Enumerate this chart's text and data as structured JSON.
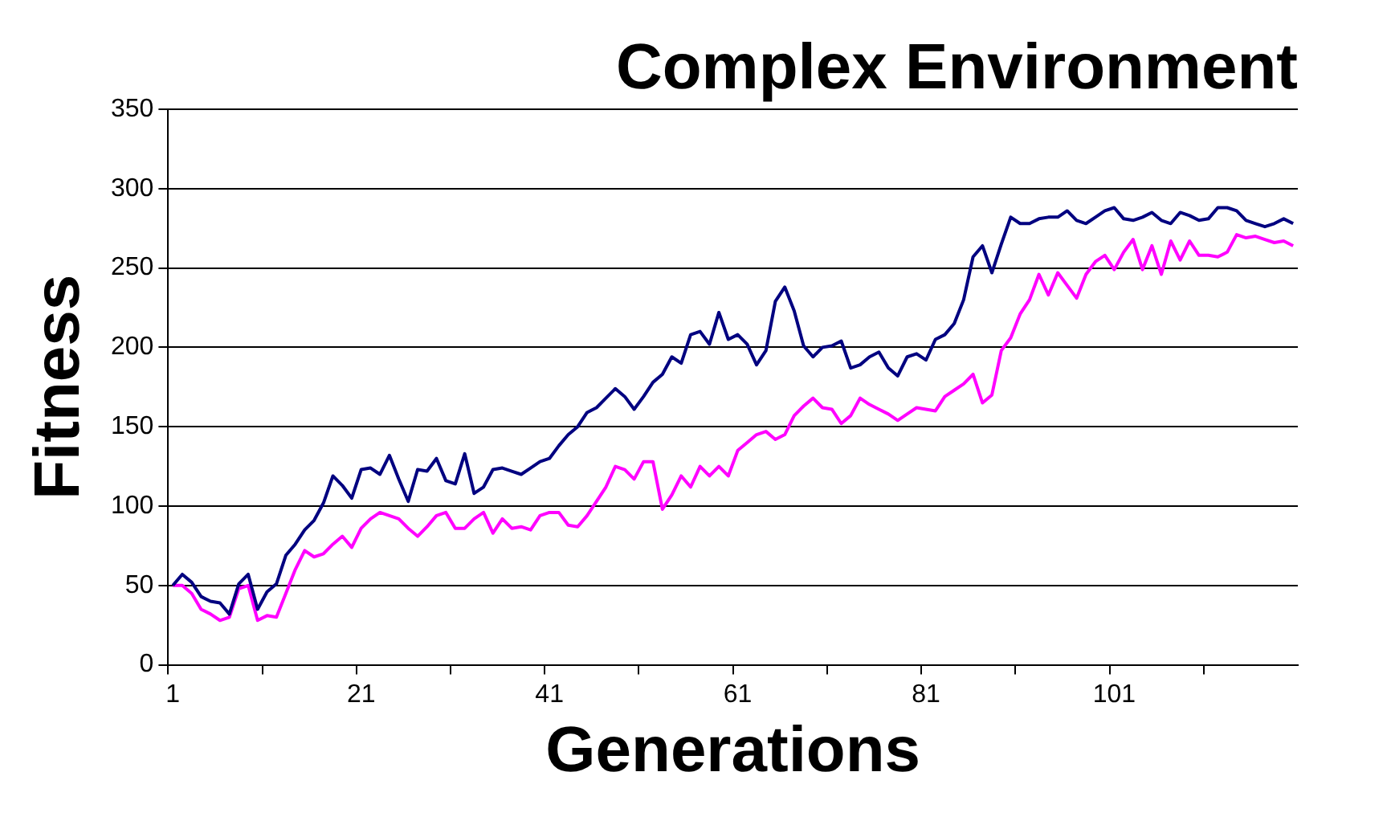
{
  "chart_data": {
    "type": "line",
    "title": "Complex Environment",
    "xlabel": "Generations",
    "ylabel": "Fitness",
    "categories": [
      "1",
      null,
      null,
      null,
      null,
      null,
      null,
      null,
      null,
      null,
      null,
      null,
      null,
      null,
      null,
      null,
      null,
      null,
      null,
      null,
      "21",
      null,
      null,
      null,
      null,
      null,
      null,
      null,
      null,
      null,
      null,
      null,
      null,
      null,
      null,
      null,
      null,
      null,
      null,
      null,
      "41",
      null,
      null,
      null,
      null,
      null,
      null,
      null,
      null,
      null,
      null,
      null,
      null,
      null,
      null,
      null,
      null,
      null,
      null,
      null,
      "61",
      null,
      null,
      null,
      null,
      null,
      null,
      null,
      null,
      null,
      null,
      null,
      null,
      null,
      null,
      null,
      null,
      null,
      null,
      null,
      "81",
      null,
      null,
      null,
      null,
      null,
      null,
      null,
      null,
      null,
      null,
      null,
      null,
      null,
      null,
      null,
      null,
      null,
      null,
      null,
      "101",
      null,
      null,
      null,
      null,
      null,
      null,
      null,
      null,
      null,
      null,
      null,
      null,
      null,
      null,
      null,
      null,
      null,
      null,
      null
    ],
    "series": [
      {
        "color": "#000080",
        "values": [
          50,
          57,
          52,
          43,
          40,
          39,
          32,
          51,
          57,
          35,
          46,
          51,
          69,
          76,
          85,
          91,
          102,
          119,
          113,
          105,
          123,
          124,
          120,
          132,
          117,
          103,
          123,
          122,
          130,
          116,
          114,
          133,
          108,
          112,
          123,
          124,
          122,
          120,
          124,
          128,
          130,
          138,
          145,
          150,
          159,
          162,
          168,
          174,
          169,
          161,
          169,
          178,
          183,
          194,
          190,
          208,
          210,
          202,
          222,
          205,
          208,
          202,
          189,
          198,
          229,
          238,
          223,
          201,
          194,
          200,
          201,
          204,
          187,
          189,
          194,
          197,
          187,
          182,
          194,
          196,
          192,
          205,
          208,
          215,
          230,
          257,
          264,
          247,
          265,
          282,
          278,
          278,
          281,
          282,
          282,
          286,
          280,
          278,
          282,
          286,
          288,
          281,
          280,
          282,
          285,
          280,
          278,
          285,
          283,
          280,
          281,
          288,
          288,
          286,
          280,
          278,
          276,
          278,
          281,
          278
        ]
      },
      {
        "color": "#ff00ff",
        "values": [
          50,
          50,
          45,
          35,
          32,
          28,
          30,
          48,
          50,
          28,
          31,
          30,
          45,
          60,
          72,
          68,
          70,
          76,
          81,
          74,
          86,
          92,
          96,
          94,
          92,
          86,
          81,
          87,
          94,
          96,
          86,
          86,
          92,
          96,
          83,
          92,
          86,
          87,
          85,
          94,
          96,
          96,
          88,
          87,
          94,
          103,
          112,
          125,
          123,
          117,
          128,
          128,
          98,
          107,
          119,
          112,
          125,
          119,
          125,
          119,
          135,
          140,
          145,
          147,
          142,
          145,
          157,
          163,
          168,
          162,
          161,
          152,
          157,
          168,
          164,
          161,
          158,
          154,
          158,
          162,
          161,
          160,
          169,
          173,
          177,
          183,
          165,
          170,
          198,
          206,
          221,
          230,
          246,
          233,
          247,
          239,
          231,
          246,
          254,
          258,
          249,
          260,
          268,
          249,
          264,
          246,
          267,
          255,
          267,
          258,
          258,
          257,
          260,
          271,
          269,
          270,
          268,
          266,
          267,
          264
        ]
      }
    ],
    "ylim": [
      0,
      350
    ],
    "yticks": [
      0,
      50,
      100,
      150,
      200,
      250,
      300,
      350
    ],
    "grid": "y",
    "marker": "none"
  }
}
